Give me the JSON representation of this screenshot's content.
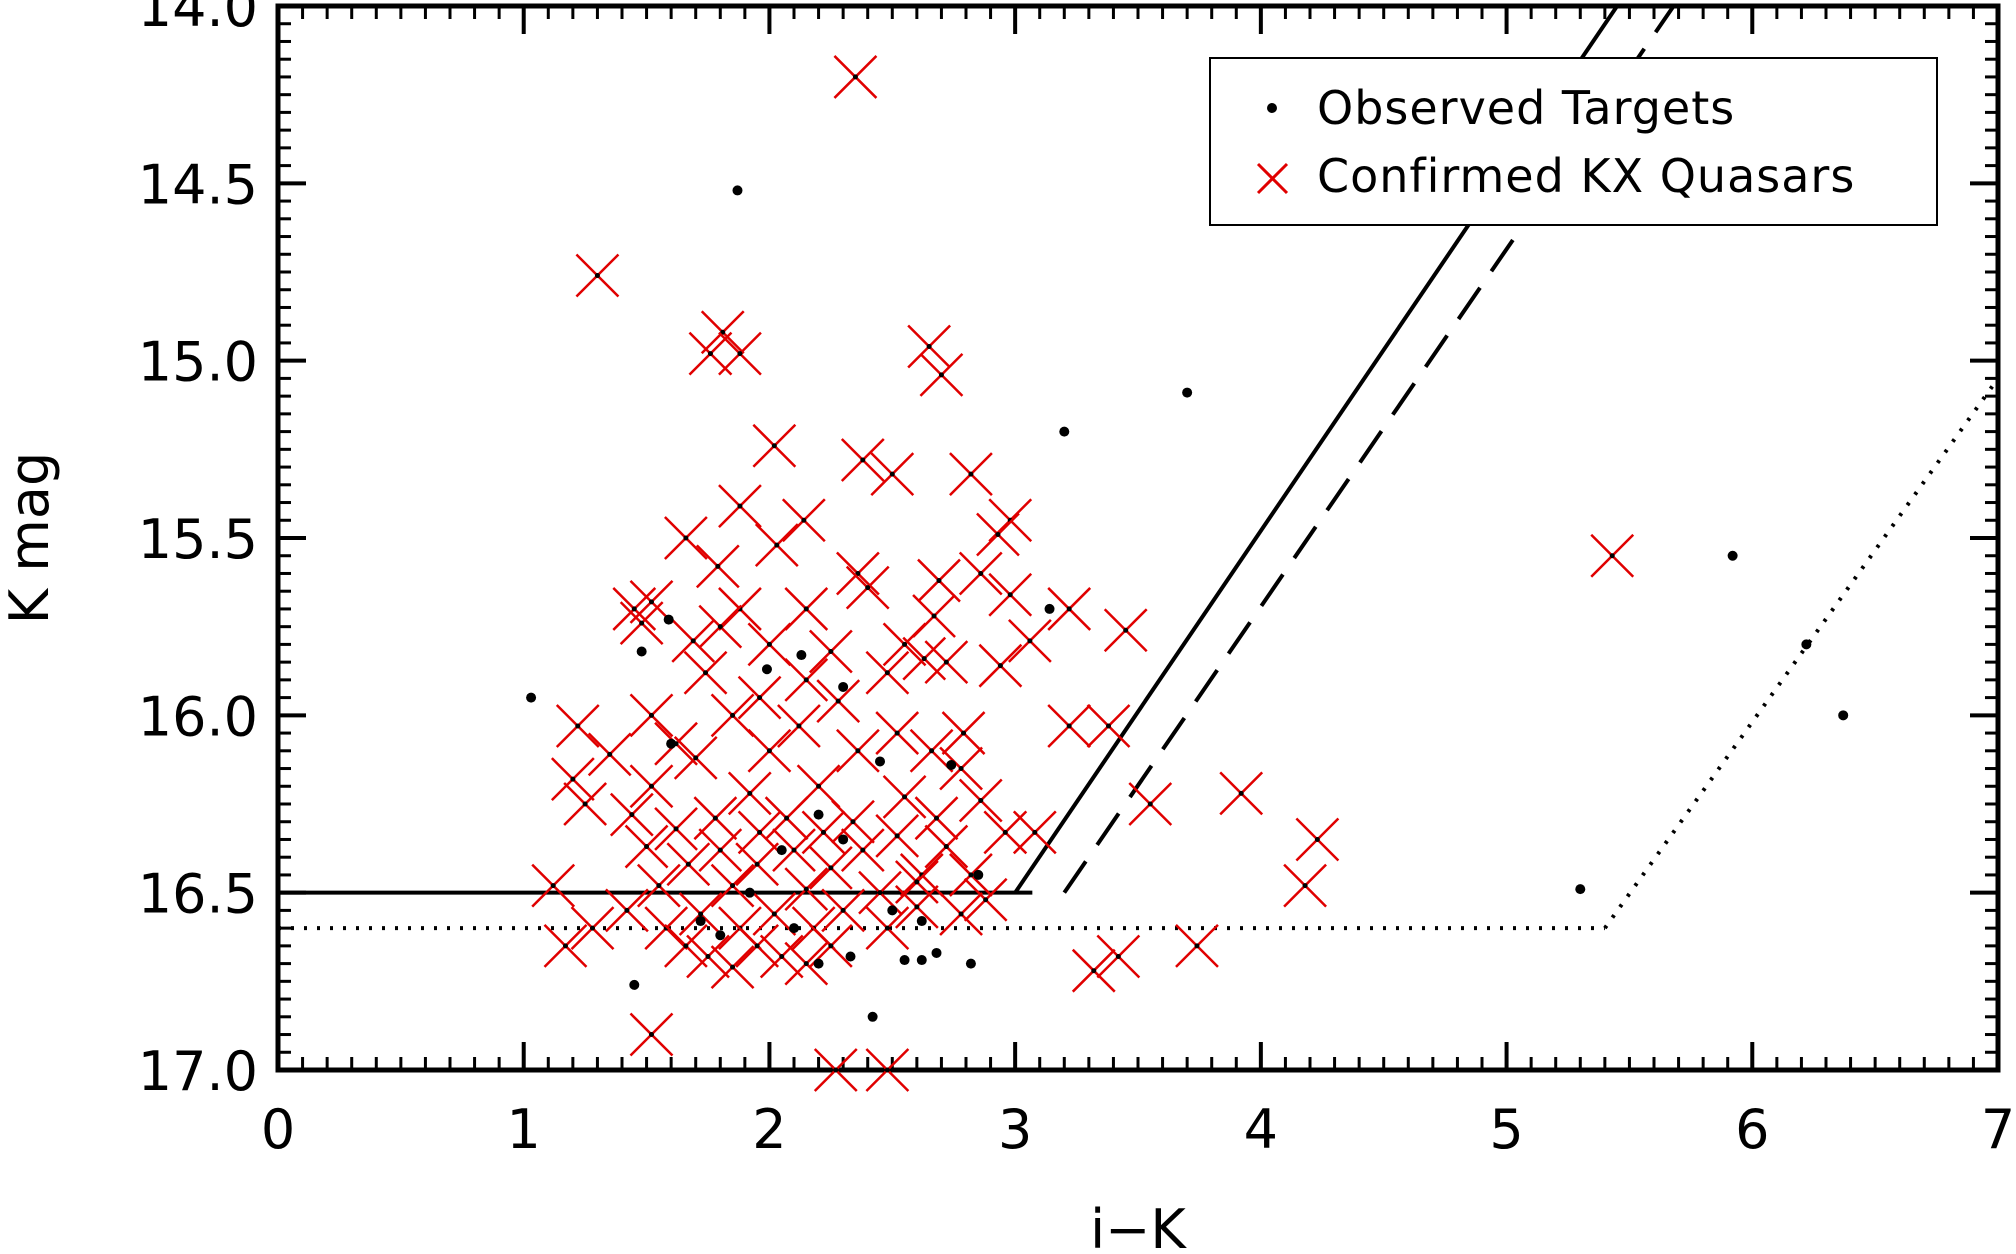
{
  "chart_data": {
    "type": "scatter",
    "xlabel": "i−K",
    "ylabel": "K mag",
    "xlim": [
      0,
      7
    ],
    "ylim": [
      17.0,
      14.0
    ],
    "y_inverted": true,
    "x_ticks": [
      "0",
      "1",
      "2",
      "3",
      "4",
      "5",
      "6",
      "7"
    ],
    "y_ticks": [
      "14.0",
      "14.5",
      "15.0",
      "15.5",
      "16.0",
      "16.5",
      "17.0"
    ],
    "legend": {
      "position": "top-right",
      "entries": [
        {
          "label": "Observed Targets",
          "marker": "dot",
          "color": "#000000"
        },
        {
          "label": "Confirmed KX Quasars",
          "marker": "x",
          "color": "#e00000"
        }
      ]
    },
    "lines": [
      {
        "style": "solid",
        "points": [
          [
            0,
            16.5
          ],
          [
            3.07,
            16.5
          ]
        ]
      },
      {
        "style": "solid",
        "points": [
          [
            3.0,
            16.5
          ],
          [
            5.45,
            14.0
          ]
        ]
      },
      {
        "style": "dashed",
        "points": [
          [
            3.2,
            16.5
          ],
          [
            5.68,
            14.0
          ]
        ]
      },
      {
        "style": "dotted",
        "points": [
          [
            0,
            16.6
          ],
          [
            5.4,
            16.6
          ]
        ]
      },
      {
        "style": "dotted",
        "points": [
          [
            5.4,
            16.6
          ],
          [
            7.0,
            15.05
          ]
        ]
      }
    ],
    "series": [
      {
        "name": "Observed Targets",
        "marker": "dot",
        "points": [
          [
            1.87,
            14.52
          ],
          [
            3.7,
            15.09
          ],
          [
            3.2,
            15.2
          ],
          [
            1.03,
            15.95
          ],
          [
            5.3,
            16.49
          ],
          [
            5.92,
            15.55
          ],
          [
            6.22,
            15.8
          ],
          [
            6.37,
            16.0
          ],
          [
            1.45,
            16.76
          ],
          [
            2.42,
            16.85
          ],
          [
            2.33,
            16.68
          ],
          [
            2.55,
            16.69
          ],
          [
            2.62,
            16.69
          ],
          [
            2.82,
            16.7
          ],
          [
            2.68,
            16.67
          ],
          [
            2.62,
            16.58
          ],
          [
            2.85,
            16.45
          ],
          [
            2.74,
            16.14
          ],
          [
            2.45,
            16.13
          ],
          [
            2.3,
            15.92
          ],
          [
            1.48,
            15.82
          ],
          [
            1.59,
            15.73
          ],
          [
            1.99,
            15.87
          ],
          [
            2.13,
            15.83
          ],
          [
            3.14,
            15.7
          ],
          [
            1.6,
            16.08
          ],
          [
            2.2,
            16.28
          ],
          [
            1.92,
            16.5
          ],
          [
            2.05,
            16.38
          ],
          [
            1.72,
            16.58
          ],
          [
            1.8,
            16.62
          ],
          [
            2.1,
            16.6
          ],
          [
            2.5,
            16.55
          ],
          [
            2.2,
            16.7
          ],
          [
            2.3,
            16.35
          ]
        ]
      },
      {
        "name": "Confirmed KX Quasars",
        "marker": "x",
        "points": [
          [
            2.35,
            14.2
          ],
          [
            1.3,
            14.76
          ],
          [
            1.81,
            14.92
          ],
          [
            1.76,
            14.98
          ],
          [
            1.88,
            14.98
          ],
          [
            2.65,
            14.96
          ],
          [
            2.7,
            15.04
          ],
          [
            2.02,
            15.24
          ],
          [
            2.38,
            15.28
          ],
          [
            2.5,
            15.32
          ],
          [
            2.82,
            15.32
          ],
          [
            1.88,
            15.41
          ],
          [
            2.98,
            15.45
          ],
          [
            2.93,
            15.49
          ],
          [
            2.14,
            15.45
          ],
          [
            1.66,
            15.5
          ],
          [
            2.03,
            15.52
          ],
          [
            5.43,
            15.55
          ],
          [
            1.79,
            15.58
          ],
          [
            2.36,
            15.6
          ],
          [
            2.4,
            15.64
          ],
          [
            2.69,
            15.62
          ],
          [
            2.86,
            15.6
          ],
          [
            2.98,
            15.66
          ],
          [
            1.45,
            15.7
          ],
          [
            1.52,
            15.68
          ],
          [
            1.88,
            15.7
          ],
          [
            2.15,
            15.7
          ],
          [
            2.67,
            15.72
          ],
          [
            3.22,
            15.7
          ],
          [
            1.48,
            15.74
          ],
          [
            1.8,
            15.75
          ],
          [
            2.55,
            15.8
          ],
          [
            3.06,
            15.79
          ],
          [
            3.45,
            15.76
          ],
          [
            1.69,
            15.79
          ],
          [
            2.0,
            15.8
          ],
          [
            2.25,
            15.82
          ],
          [
            2.63,
            15.84
          ],
          [
            2.94,
            15.86
          ],
          [
            2.48,
            15.88
          ],
          [
            2.72,
            15.85
          ],
          [
            1.74,
            15.88
          ],
          [
            2.15,
            15.9
          ],
          [
            1.96,
            15.95
          ],
          [
            2.28,
            15.96
          ],
          [
            1.52,
            16.0
          ],
          [
            1.85,
            16.0
          ],
          [
            2.12,
            16.03
          ],
          [
            1.22,
            16.03
          ],
          [
            3.22,
            16.03
          ],
          [
            3.38,
            16.03
          ],
          [
            2.52,
            16.05
          ],
          [
            2.79,
            16.05
          ],
          [
            1.62,
            16.08
          ],
          [
            2.0,
            16.1
          ],
          [
            2.36,
            16.1
          ],
          [
            2.66,
            16.1
          ],
          [
            1.35,
            16.11
          ],
          [
            1.7,
            16.12
          ],
          [
            2.78,
            16.15
          ],
          [
            1.2,
            16.18
          ],
          [
            1.52,
            16.2
          ],
          [
            1.92,
            16.22
          ],
          [
            2.2,
            16.2
          ],
          [
            2.55,
            16.23
          ],
          [
            3.92,
            16.22
          ],
          [
            2.86,
            16.24
          ],
          [
            1.25,
            16.25
          ],
          [
            3.55,
            16.25
          ],
          [
            1.44,
            16.28
          ],
          [
            1.78,
            16.29
          ],
          [
            2.07,
            16.29
          ],
          [
            2.34,
            16.3
          ],
          [
            2.68,
            16.29
          ],
          [
            1.62,
            16.32
          ],
          [
            1.96,
            16.33
          ],
          [
            2.22,
            16.33
          ],
          [
            2.52,
            16.34
          ],
          [
            2.96,
            16.33
          ],
          [
            3.08,
            16.33
          ],
          [
            4.23,
            16.35
          ],
          [
            1.5,
            16.37
          ],
          [
            1.8,
            16.38
          ],
          [
            2.1,
            16.38
          ],
          [
            2.38,
            16.38
          ],
          [
            2.72,
            16.37
          ],
          [
            1.67,
            16.42
          ],
          [
            1.95,
            16.42
          ],
          [
            2.25,
            16.43
          ],
          [
            2.62,
            16.45
          ],
          [
            2.82,
            16.45
          ],
          [
            1.12,
            16.48
          ],
          [
            1.55,
            16.48
          ],
          [
            1.85,
            16.48
          ],
          [
            2.15,
            16.49
          ],
          [
            2.45,
            16.5
          ],
          [
            4.18,
            16.48
          ],
          [
            2.6,
            16.47
          ],
          [
            2.88,
            16.52
          ],
          [
            1.42,
            16.55
          ],
          [
            1.72,
            16.56
          ],
          [
            2.02,
            16.56
          ],
          [
            2.3,
            16.55
          ],
          [
            2.6,
            16.54
          ],
          [
            2.78,
            16.56
          ],
          [
            1.28,
            16.6
          ],
          [
            1.58,
            16.6
          ],
          [
            1.88,
            16.6
          ],
          [
            2.18,
            16.6
          ],
          [
            2.48,
            16.6
          ],
          [
            1.17,
            16.65
          ],
          [
            1.66,
            16.65
          ],
          [
            1.95,
            16.65
          ],
          [
            2.25,
            16.65
          ],
          [
            3.74,
            16.65
          ],
          [
            1.75,
            16.68
          ],
          [
            2.05,
            16.68
          ],
          [
            3.42,
            16.68
          ],
          [
            1.85,
            16.71
          ],
          [
            2.15,
            16.7
          ],
          [
            3.32,
            16.72
          ],
          [
            1.52,
            16.9
          ],
          [
            2.27,
            17.0
          ],
          [
            2.48,
            17.0
          ]
        ]
      }
    ]
  }
}
